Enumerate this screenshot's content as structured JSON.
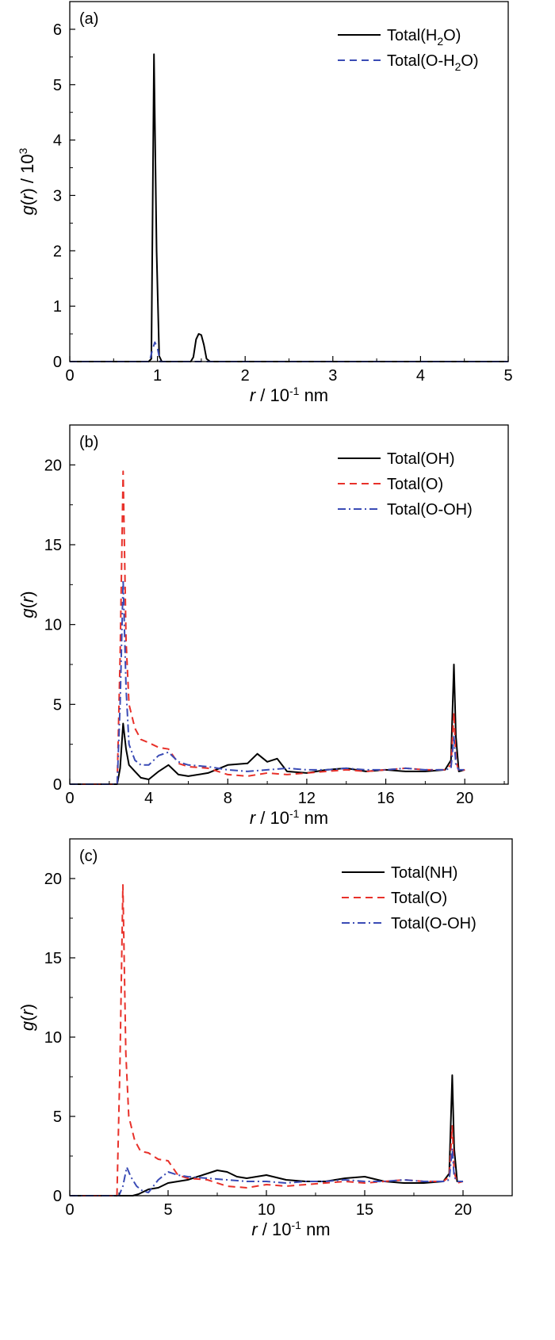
{
  "chart_data": [
    {
      "panel": "(a)",
      "type": "line",
      "xlabel": {
        "var": "r",
        "rest": " / 10",
        "sup": "-1",
        "unit": " nm"
      },
      "ylabel": {
        "g": "g",
        "r": "r",
        "suffix": " / 10",
        "sup": "3"
      },
      "xlim": [
        0,
        5
      ],
      "ylim": [
        0,
        6.5
      ],
      "xticks": [
        0,
        1,
        2,
        3,
        4,
        5
      ],
      "xtick_labels": [
        "0",
        "1",
        "2",
        "3",
        "4",
        "5"
      ],
      "yticks": [
        0,
        1,
        2,
        3,
        4,
        5,
        6
      ],
      "ytick_labels": [
        "0",
        "1",
        "2",
        "3",
        "4",
        "5",
        "6"
      ],
      "legend_position": "top-right",
      "series": [
        {
          "name_parts": {
            "pre": "Total(H",
            "sub": "2",
            "post": "O)"
          },
          "color": "#000000",
          "dash": "solid",
          "x": [
            0,
            0.9,
            0.93,
            0.96,
            0.99,
            1.02,
            1.05,
            1.38,
            1.41,
            1.44,
            1.47,
            1.5,
            1.53,
            1.56,
            1.6,
            5.0
          ],
          "y": [
            0,
            0,
            0.05,
            5.55,
            2.0,
            0.1,
            0,
            0,
            0.08,
            0.4,
            0.5,
            0.48,
            0.3,
            0.05,
            0,
            0
          ]
        },
        {
          "name_parts": {
            "pre": "Total(O-H",
            "sub": "2",
            "post": "O)"
          },
          "color": "#3a4bb5",
          "dash": "dashed",
          "x": [
            0,
            0.91,
            0.94,
            0.97,
            1.0,
            1.03,
            5.0
          ],
          "y": [
            0,
            0,
            0.2,
            0.35,
            0.25,
            0,
            0
          ]
        }
      ]
    },
    {
      "panel": "(b)",
      "type": "line",
      "xlabel": {
        "var": "r",
        "rest": " / 10",
        "sup": "-1",
        "unit": " nm"
      },
      "ylabel": {
        "g": "g",
        "r": "r",
        "suffix": "",
        "sup": ""
      },
      "xlim": [
        0,
        22.2
      ],
      "ylim": [
        0,
        22.5
      ],
      "xticks": [
        0,
        4,
        8,
        12,
        16,
        20
      ],
      "xtick_labels": [
        "0",
        "4",
        "8",
        "12",
        "16",
        "20"
      ],
      "yticks": [
        0,
        5,
        10,
        15,
        20
      ],
      "ytick_labels": [
        "0",
        "5",
        "10",
        "15",
        "20"
      ],
      "legend_position": "top-right",
      "series": [
        {
          "name": "Total(OH)",
          "color": "#000000",
          "dash": "solid",
          "x": [
            0,
            2.4,
            2.55,
            2.7,
            2.85,
            3.0,
            3.3,
            3.6,
            4.0,
            4.5,
            5.0,
            5.5,
            6.0,
            7.0,
            8.0,
            9.0,
            9.5,
            10.0,
            10.5,
            11.0,
            12.0,
            13.0,
            14.0,
            15.0,
            16.0,
            17.0,
            18.0,
            19.0,
            19.3,
            19.45,
            19.55,
            19.7,
            20.0
          ],
          "y": [
            0,
            0,
            1.0,
            3.8,
            2.2,
            1.2,
            0.8,
            0.4,
            0.3,
            0.8,
            1.2,
            0.6,
            0.5,
            0.7,
            1.2,
            1.3,
            1.9,
            1.4,
            1.6,
            0.8,
            0.7,
            0.9,
            1.0,
            0.8,
            0.9,
            0.8,
            0.8,
            0.9,
            1.5,
            7.5,
            3.0,
            0.8,
            0.9
          ]
        },
        {
          "name": "Total(O)",
          "color": "#e8312a",
          "dash": "dashed",
          "x": [
            0,
            2.4,
            2.55,
            2.7,
            2.85,
            3.0,
            3.3,
            3.6,
            4.0,
            4.5,
            5.0,
            5.5,
            6.0,
            7.0,
            8.0,
            9.0,
            10.0,
            11.0,
            12.0,
            13.0,
            14.0,
            15.0,
            16.0,
            17.0,
            18.0,
            19.0,
            19.3,
            19.45,
            19.55,
            19.7,
            20.0
          ],
          "y": [
            0,
            0,
            8.0,
            19.6,
            9.0,
            5.0,
            3.5,
            2.8,
            2.6,
            2.3,
            2.2,
            1.3,
            1.1,
            1.0,
            0.6,
            0.5,
            0.7,
            0.6,
            0.7,
            0.8,
            0.9,
            0.8,
            0.9,
            1.0,
            0.9,
            0.9,
            1.2,
            4.5,
            1.5,
            0.8,
            0.9
          ]
        },
        {
          "name": "Total(O-OH)",
          "color": "#3a4bb5",
          "dash": "dashdot",
          "x": [
            0,
            2.4,
            2.55,
            2.7,
            2.85,
            3.0,
            3.3,
            3.6,
            4.0,
            4.5,
            5.0,
            5.5,
            6.0,
            7.0,
            8.0,
            9.0,
            10.0,
            11.0,
            12.0,
            13.0,
            14.0,
            15.0,
            16.0,
            17.0,
            18.0,
            19.0,
            19.3,
            19.45,
            19.55,
            19.7,
            20.0
          ],
          "y": [
            0,
            0,
            5.0,
            12.8,
            6.0,
            2.5,
            1.5,
            1.2,
            1.2,
            1.8,
            2.0,
            1.4,
            1.2,
            1.1,
            0.9,
            0.8,
            0.9,
            1.0,
            0.9,
            0.9,
            1.0,
            0.9,
            0.9,
            1.0,
            0.9,
            0.9,
            1.0,
            3.0,
            1.2,
            0.9,
            0.9
          ]
        }
      ]
    },
    {
      "panel": "(c)",
      "type": "line",
      "xlabel": {
        "var": "r",
        "rest": " / 10",
        "sup": "-1",
        "unit": " nm"
      },
      "ylabel": {
        "g": "g",
        "r": "r",
        "suffix": "",
        "sup": ""
      },
      "xlim": [
        0,
        22.5
      ],
      "ylim": [
        0,
        22.5
      ],
      "xticks": [
        0,
        5,
        10,
        15,
        20
      ],
      "xtick_labels": [
        "0",
        "5",
        "10",
        "15",
        "20"
      ],
      "yticks": [
        0,
        5,
        10,
        15,
        20
      ],
      "ytick_labels": [
        "0",
        "5",
        "10",
        "15",
        "20"
      ],
      "legend_position": "top-right",
      "series": [
        {
          "name": "Total(NH)",
          "color": "#000000",
          "dash": "solid",
          "x": [
            0,
            3.2,
            3.5,
            4.0,
            4.5,
            5.0,
            5.5,
            6.0,
            6.5,
            7.0,
            7.5,
            8.0,
            8.5,
            9.0,
            9.5,
            10.0,
            11.0,
            12.0,
            13.0,
            14.0,
            15.0,
            16.0,
            17.0,
            18.0,
            19.0,
            19.3,
            19.45,
            19.55,
            19.7,
            20.0
          ],
          "y": [
            0,
            0,
            0.1,
            0.4,
            0.5,
            0.8,
            0.9,
            1.0,
            1.2,
            1.4,
            1.6,
            1.5,
            1.2,
            1.1,
            1.2,
            1.3,
            1.0,
            0.9,
            0.9,
            1.1,
            1.2,
            0.9,
            0.8,
            0.8,
            0.9,
            1.4,
            7.6,
            3.0,
            0.9,
            0.9
          ]
        },
        {
          "name": "Total(O)",
          "color": "#e8312a",
          "dash": "dashed",
          "x": [
            0,
            2.4,
            2.55,
            2.7,
            2.85,
            3.0,
            3.3,
            3.6,
            4.0,
            4.5,
            5.0,
            5.5,
            6.0,
            7.0,
            8.0,
            9.0,
            10.0,
            11.0,
            12.0,
            13.0,
            14.0,
            15.0,
            16.0,
            17.0,
            18.0,
            19.0,
            19.3,
            19.45,
            19.55,
            19.7,
            20.0
          ],
          "y": [
            0,
            0,
            8.0,
            19.6,
            9.0,
            5.0,
            3.5,
            2.8,
            2.7,
            2.3,
            2.2,
            1.3,
            1.1,
            1.0,
            0.6,
            0.5,
            0.7,
            0.6,
            0.7,
            0.8,
            0.9,
            0.8,
            0.9,
            1.0,
            0.9,
            0.9,
            1.2,
            4.4,
            1.5,
            0.8,
            0.9
          ]
        },
        {
          "name": "Total(O-OH)",
          "color": "#3a4bb5",
          "dash": "dashdot",
          "x": [
            0,
            2.5,
            2.7,
            2.9,
            3.1,
            3.4,
            3.7,
            4.0,
            4.5,
            5.0,
            5.5,
            6.0,
            7.0,
            8.0,
            9.0,
            10.0,
            11.0,
            12.0,
            13.0,
            14.0,
            15.0,
            16.0,
            17.0,
            18.0,
            19.0,
            19.3,
            19.45,
            19.55,
            19.7,
            20.0
          ],
          "y": [
            0,
            0,
            0.6,
            1.8,
            1.2,
            0.6,
            0.3,
            0.2,
            1.0,
            1.5,
            1.3,
            1.2,
            1.1,
            1.0,
            0.9,
            0.9,
            0.8,
            0.9,
            0.9,
            1.0,
            0.9,
            0.9,
            1.0,
            0.9,
            0.9,
            1.0,
            3.0,
            1.2,
            0.9,
            0.9
          ]
        }
      ]
    }
  ]
}
